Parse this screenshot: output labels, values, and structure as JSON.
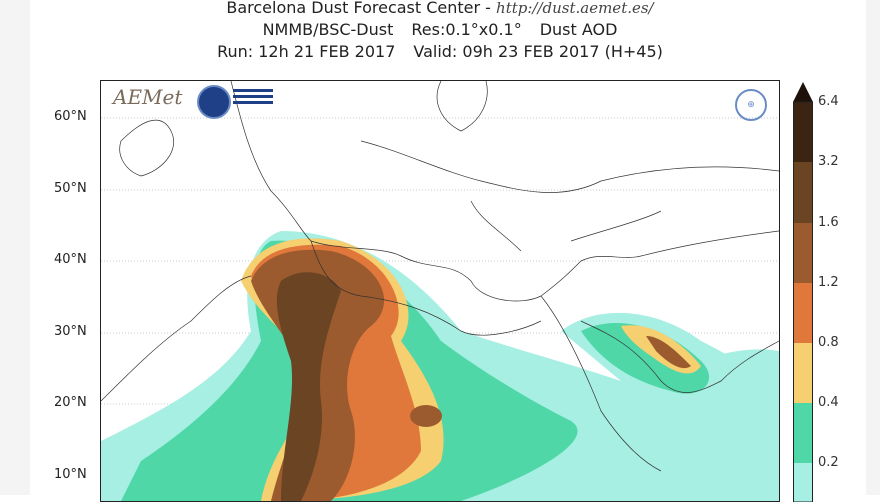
{
  "header": {
    "title": "Barcelona Dust Forecast Center - ",
    "url": "http://dust.aemet.es/",
    "model": "NMMB/BSC-Dust",
    "resolution": "Res:0.1°x0.1°",
    "variable": "Dust AOD",
    "run": "Run: 12h 21 FEB 2017",
    "valid": "Valid: 09h 23 FEB 2017 (H+45)"
  },
  "map": {
    "latitude_labels": [
      "60°N",
      "50°N",
      "40°N",
      "30°N",
      "20°N",
      "10°N"
    ],
    "logos": [
      "AEMET",
      "BSC Barcelona Supercomputing Center",
      "WMO"
    ]
  },
  "colorbar": {
    "labels": [
      "6.4",
      "3.2",
      "1.6",
      "1.2",
      "0.8",
      "0.4",
      "0.2"
    ],
    "colors": [
      "#3b2412",
      "#6b4424",
      "#9b5b2e",
      "#e0783c",
      "#f6cf70",
      "#4fd7a8",
      "#a6efe2"
    ]
  }
}
